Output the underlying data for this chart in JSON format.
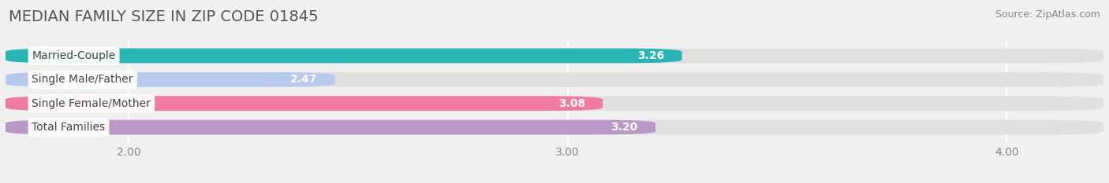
{
  "title": "MEDIAN FAMILY SIZE IN ZIP CODE 01845",
  "source": "Source: ZipAtlas.com",
  "categories": [
    "Married-Couple",
    "Single Male/Father",
    "Single Female/Mother",
    "Total Families"
  ],
  "values": [
    3.26,
    2.47,
    3.08,
    3.2
  ],
  "bar_colors": [
    "#2ab5b5",
    "#b8c9ee",
    "#f07aa0",
    "#b899c8"
  ],
  "value_colors": [
    "#ffffff",
    "#555555",
    "#555555",
    "#ffffff"
  ],
  "bar_height": 0.62,
  "xlim": [
    1.72,
    4.22
  ],
  "data_min": 1.72,
  "data_max": 4.22,
  "xticks": [
    2.0,
    3.0,
    4.0
  ],
  "xtick_labels": [
    "2.00",
    "3.00",
    "4.00"
  ],
  "title_fontsize": 14,
  "source_fontsize": 9,
  "label_fontsize": 10,
  "value_fontsize": 10,
  "tick_fontsize": 10,
  "background_color": "#f0f0f0",
  "bar_bg_color": "#e0e0e0",
  "grid_color": "#ffffff",
  "label_text_color": "#444444"
}
